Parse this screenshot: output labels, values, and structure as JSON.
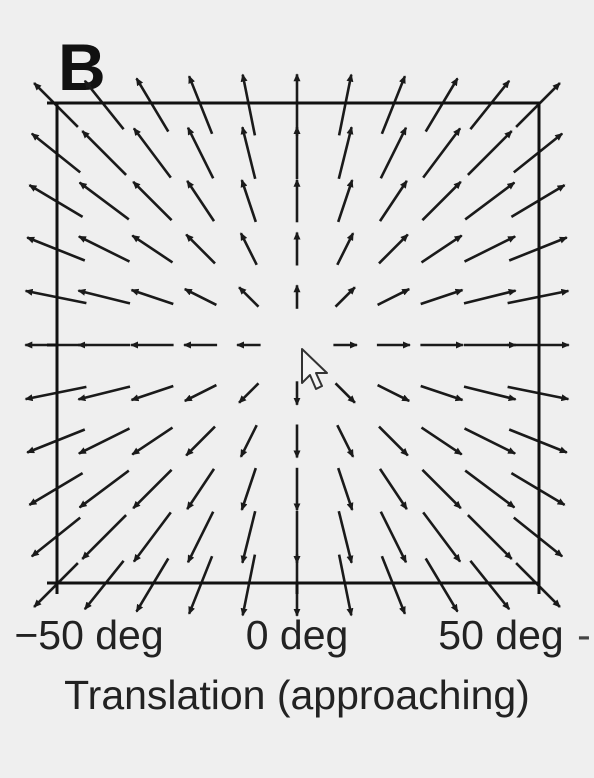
{
  "panel_label": "B",
  "x_tick_labels": [
    "−50 deg",
    "0 deg",
    "50 deg"
  ],
  "x_axis_label": "Translation (approaching)",
  "right_edge_mark": "-",
  "diagram": {
    "type": "vector-field",
    "pattern": "radial expansion from center (focus of expansion at 0 deg, 0 deg)",
    "x_range_deg": [
      -50,
      50
    ],
    "y_range_deg": [
      -50,
      50
    ],
    "grid_step_deg": 10,
    "arrow_color": "#1a1a1a",
    "frame_color": "#111111",
    "background_color": "#efefef"
  },
  "icons": [
    "arrow-cursor-icon"
  ]
}
